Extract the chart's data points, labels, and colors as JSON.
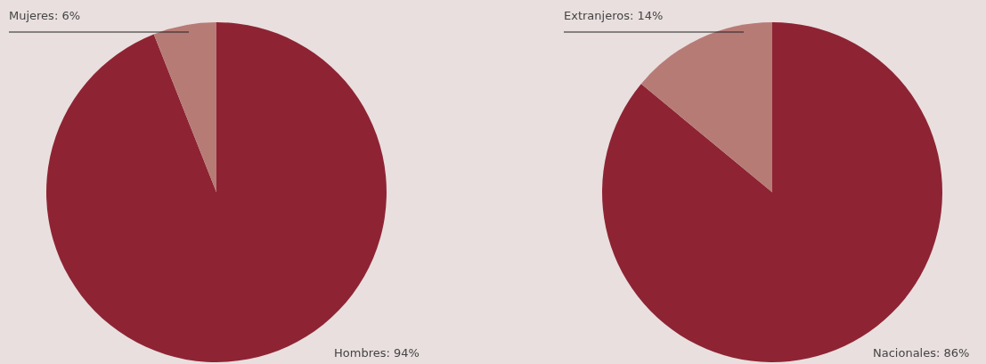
{
  "chart_data": [
    {
      "type": "pie",
      "categories": [
        "Hombres",
        "Mujeres"
      ],
      "values": [
        94,
        6
      ],
      "colors": [
        "#8e2433",
        "#b77b76"
      ],
      "value_labels": [
        "94%",
        "6%"
      ]
    },
    {
      "type": "pie",
      "categories": [
        "Nacionales",
        "Extranjeros"
      ],
      "values": [
        86,
        14
      ],
      "colors": [
        "#8e2433",
        "#b77b76"
      ],
      "value_labels": [
        "86%",
        "14%"
      ]
    }
  ]
}
